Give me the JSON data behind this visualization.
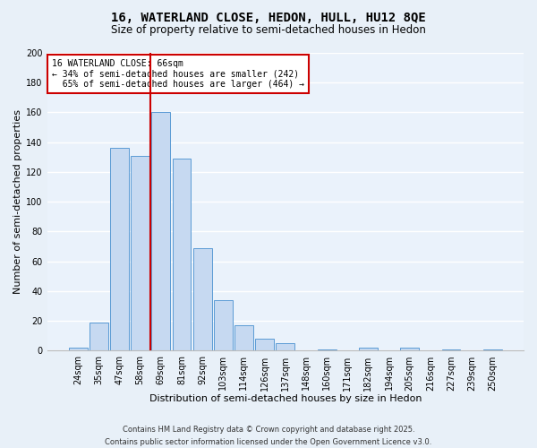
{
  "title": "16, WATERLAND CLOSE, HEDON, HULL, HU12 8QE",
  "subtitle": "Size of property relative to semi-detached houses in Hedon",
  "xlabel": "Distribution of semi-detached houses by size in Hedon",
  "ylabel": "Number of semi-detached properties",
  "bar_labels": [
    "24sqm",
    "35sqm",
    "47sqm",
    "58sqm",
    "69sqm",
    "81sqm",
    "92sqm",
    "103sqm",
    "114sqm",
    "126sqm",
    "137sqm",
    "148sqm",
    "160sqm",
    "171sqm",
    "182sqm",
    "194sqm",
    "205sqm",
    "216sqm",
    "227sqm",
    "239sqm",
    "250sqm"
  ],
  "bar_values": [
    2,
    19,
    136,
    131,
    160,
    129,
    69,
    34,
    17,
    8,
    5,
    0,
    1,
    0,
    2,
    0,
    2,
    0,
    1,
    0,
    1
  ],
  "bar_color": "#c6d9f1",
  "bar_edge_color": "#5b9bd5",
  "ylim": [
    0,
    200
  ],
  "yticks": [
    0,
    20,
    40,
    60,
    80,
    100,
    120,
    140,
    160,
    180,
    200
  ],
  "property_label": "16 WATERLAND CLOSE: 66sqm",
  "pct_smaller": 34,
  "pct_larger": 65,
  "n_smaller": 242,
  "n_larger": 464,
  "vline_bin_index": 4,
  "vline_color": "#cc0000",
  "annotation_box_edge_color": "#cc0000",
  "footer_line1": "Contains HM Land Registry data © Crown copyright and database right 2025.",
  "footer_line2": "Contains public sector information licensed under the Open Government Licence v3.0.",
  "bg_color": "#e8f0f8",
  "plot_bg_color": "#eaf2fb",
  "grid_color": "#ffffff",
  "title_fontsize": 10,
  "subtitle_fontsize": 8.5,
  "axis_label_fontsize": 8,
  "tick_fontsize": 7,
  "footer_fontsize": 6
}
